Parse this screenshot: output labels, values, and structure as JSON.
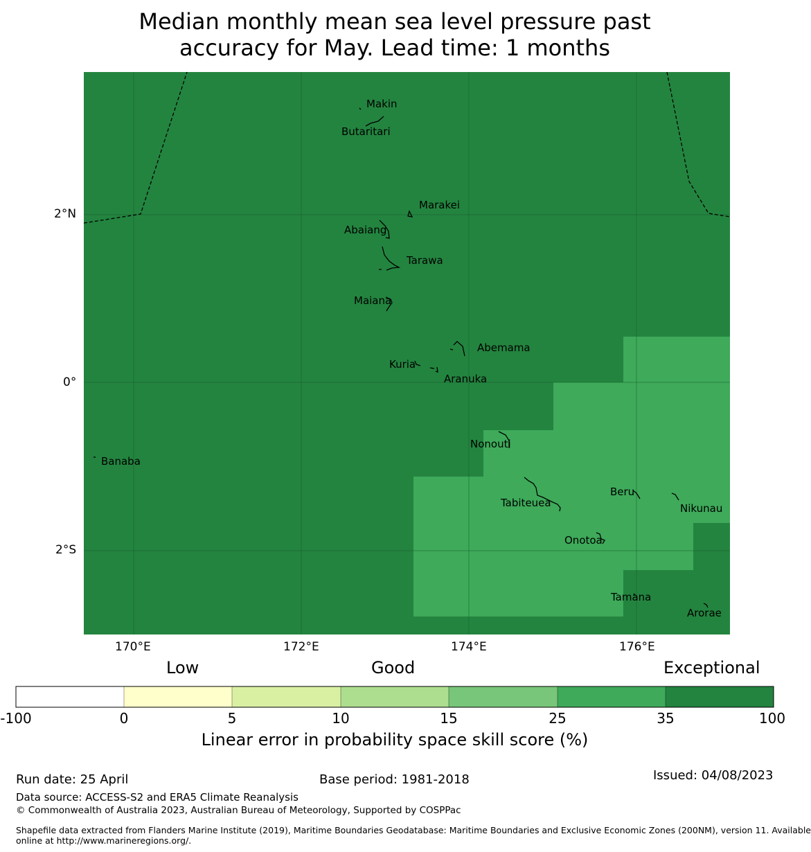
{
  "title": {
    "line1": "Median monthly mean sea level pressure past",
    "line2": "accuracy for May. Lead time: 1 months"
  },
  "map": {
    "lat_labels": [
      "2°N",
      "0°",
      "2°S"
    ],
    "lon_labels": [
      "170°E",
      "172°E",
      "174°E",
      "176°E"
    ],
    "place_names": {
      "makin": "Makin",
      "butaritari": "Butaritari",
      "marakei": "Marakei",
      "abaiang": "Abaiang",
      "tarawa": "Tarawa",
      "maiana": "Maiana",
      "abemama": "Abemama",
      "kuria": "Kuria",
      "aranuka": "Aranuka",
      "nonouti": "Nonouti",
      "banaba": "Banaba",
      "beru": "Beru",
      "tabiteuea": "Tabiteuea",
      "nikunau": "Nikunau",
      "onotoa": "Onotoa",
      "tamana": "Tamana",
      "arorae": "Arorae"
    },
    "colors": {
      "exceptional": "#23843f",
      "very_good": "#3eaa5a",
      "eez_boundary": "#000000",
      "gridline": "#1a5c2c"
    }
  },
  "colorbar": {
    "category_labels": {
      "low": "Low",
      "good": "Good",
      "exceptional": "Exceptional"
    },
    "ticks": [
      "-100",
      "0",
      "5",
      "10",
      "15",
      "25",
      "35",
      "100"
    ],
    "bins": [
      {
        "range": "-100 to 0",
        "color": "#ffffff"
      },
      {
        "range": "0 to 5",
        "color": "#ffffcc"
      },
      {
        "range": "5 to 10",
        "color": "#d9f0a3"
      },
      {
        "range": "10 to 15",
        "color": "#addd8e"
      },
      {
        "range": "15 to 25",
        "color": "#78c679"
      },
      {
        "range": "25 to 35",
        "color": "#3eaa5a"
      },
      {
        "range": "35 to 100",
        "color": "#23843f"
      }
    ],
    "title": "Linear error in probability space skill score (%)"
  },
  "footer": {
    "run_date": "Run date: 25 April",
    "base_period": "Base period: 1981-2018",
    "issued": "Issued: 04/08/2023",
    "data_source": "Data source: ACCESS-S2 and ERA5 Climate Reanalysis",
    "copyright": "© Commonwealth of Australia 2023, Australian Bureau of Meteorology, Supported by COSPPac",
    "shapefile_line1": "Shapefile data extracted from Flanders Marine Institute (2019), Maritime Boundaries Geodatabase: Maritime Boundaries and Exclusive Economic Zones (200NM), version 11. Available",
    "shapefile_line2": "online at http://www.marineregions.org/."
  }
}
